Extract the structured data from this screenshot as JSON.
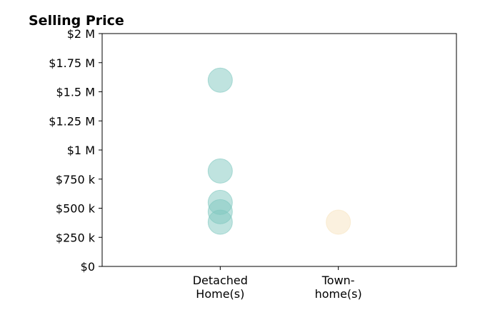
{
  "chart_data": {
    "type": "scatter",
    "title": "Selling Price",
    "xlabel": "",
    "ylabel": "",
    "categories": [
      [
        "Detached",
        "Home(s)"
      ],
      [
        "Town-",
        "home(s)"
      ]
    ],
    "x_range": [
      -1,
      2
    ],
    "ylim": [
      0,
      2000000
    ],
    "y_ticks": [
      {
        "value": 0,
        "label": "$0"
      },
      {
        "value": 250000,
        "label": "$250 k"
      },
      {
        "value": 500000,
        "label": "$500 k"
      },
      {
        "value": 750000,
        "label": "$750 k"
      },
      {
        "value": 1000000,
        "label": "$1 M"
      },
      {
        "value": 1250000,
        "label": "$1.25 M"
      },
      {
        "value": 1500000,
        "label": "$1.5 M"
      },
      {
        "value": 1750000,
        "label": "$1.75 M"
      },
      {
        "value": 2000000,
        "label": "$2 M"
      }
    ],
    "grid": false,
    "legend": "none",
    "series": [
      {
        "category_index": 0,
        "color": "#7fc8bf",
        "values": [
          1600000,
          820000,
          550000,
          470000,
          380000
        ]
      },
      {
        "category_index": 1,
        "color": "#f7e4c0",
        "values": [
          380000
        ]
      }
    ]
  }
}
